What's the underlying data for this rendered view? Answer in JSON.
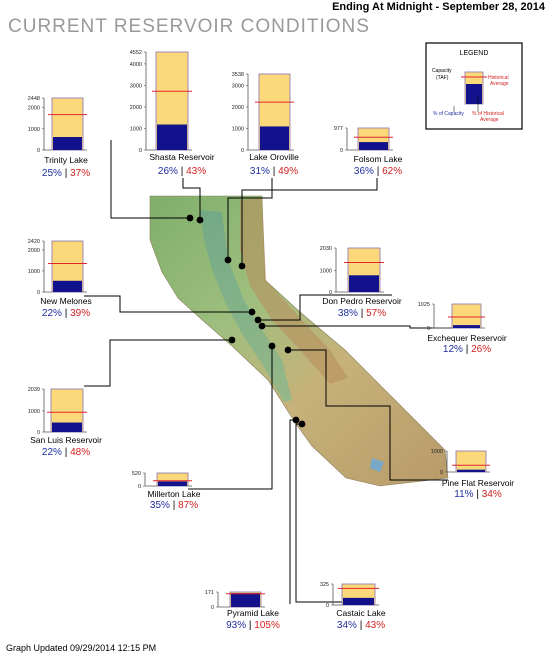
{
  "header": {
    "title": "CURRENT RESERVOIR CONDITIONS",
    "date_line": "Ending At Midnight - September 28, 2014"
  },
  "footer": {
    "updated": "Graph Updated 09/29/2014 12:15 PM"
  },
  "legend": {
    "title": "LEGEND",
    "capacity_label": "Capacity (TAF)",
    "historical_label": "Historical Average",
    "pct_capacity_label": "% of Capacity",
    "pct_hist_label": "% of Historical Average"
  },
  "colors": {
    "capacity_fill": "#fbd97a",
    "storage_fill": "#12128c",
    "historical_line": "#e0262b",
    "pct_capacity_text": "#1f2f9f",
    "pct_hist_text": "#d21f1f",
    "title_text": "#999999"
  },
  "chart_data": {
    "type": "bar",
    "title": "CURRENT RESERVOIR CONDITIONS",
    "series": [
      {
        "name": "% of Capacity"
      },
      {
        "name": "% of Historical Average"
      }
    ],
    "reservoirs": [
      {
        "name": "Trinity Lake",
        "capacity": 2448,
        "pct_capacity": "25%",
        "pct_historical": "37%",
        "cap_frac": 0.25,
        "hist_frac": 0.68,
        "ticks": [
          2448,
          2000,
          1000,
          0
        ]
      },
      {
        "name": "Shasta Reservoir",
        "capacity": 4552,
        "pct_capacity": "26%",
        "pct_historical": "43%",
        "cap_frac": 0.26,
        "hist_frac": 0.6,
        "ticks": [
          4552,
          4000,
          3000,
          2000,
          1000,
          0
        ]
      },
      {
        "name": "Lake Oroville",
        "capacity": 3538,
        "pct_capacity": "31%",
        "pct_historical": "49%",
        "cap_frac": 0.31,
        "hist_frac": 0.63,
        "ticks": [
          3538,
          3000,
          2000,
          1000,
          0
        ]
      },
      {
        "name": "Folsom Lake",
        "capacity": 977,
        "pct_capacity": "36%",
        "pct_historical": "62%",
        "cap_frac": 0.36,
        "hist_frac": 0.58,
        "ticks": [
          977,
          0
        ]
      },
      {
        "name": "New Melones",
        "capacity": 2420,
        "pct_capacity": "22%",
        "pct_historical": "39%",
        "cap_frac": 0.22,
        "hist_frac": 0.56,
        "ticks": [
          2420,
          2000,
          1000,
          0
        ]
      },
      {
        "name": "Don Pedro Reservoir",
        "capacity": 2030,
        "pct_capacity": "38%",
        "pct_historical": "57%",
        "cap_frac": 0.38,
        "hist_frac": 0.67,
        "ticks": [
          2030,
          1000,
          0
        ]
      },
      {
        "name": "Exchequer Reservoir",
        "capacity": 1025,
        "pct_capacity": "12%",
        "pct_historical": "26%",
        "cap_frac": 0.12,
        "hist_frac": 0.46,
        "ticks": [
          1025,
          0
        ]
      },
      {
        "name": "San Luis Reservoir",
        "capacity": 2039,
        "pct_capacity": "22%",
        "pct_historical": "48%",
        "cap_frac": 0.22,
        "hist_frac": 0.46,
        "ticks": [
          2039,
          1000,
          0
        ]
      },
      {
        "name": "Pine Flat Reservoir",
        "capacity": 1000,
        "pct_capacity": "11%",
        "pct_historical": "34%",
        "cap_frac": 0.11,
        "hist_frac": 0.32,
        "ticks": [
          1000,
          0
        ]
      },
      {
        "name": "Millerton Lake",
        "capacity": 520,
        "pct_capacity": "35%",
        "pct_historical": "87%",
        "cap_frac": 0.35,
        "hist_frac": 0.4,
        "ticks": [
          520,
          0
        ]
      },
      {
        "name": "Pyramid Lake",
        "capacity": 171,
        "pct_capacity": "93%",
        "pct_historical": "105%",
        "cap_frac": 0.93,
        "hist_frac": 0.88,
        "ticks": [
          171,
          0
        ]
      },
      {
        "name": "Castaic Lake",
        "capacity": 325,
        "pct_capacity": "34%",
        "pct_historical": "43%",
        "cap_frac": 0.34,
        "hist_frac": 0.79,
        "ticks": [
          325,
          0
        ]
      }
    ]
  }
}
